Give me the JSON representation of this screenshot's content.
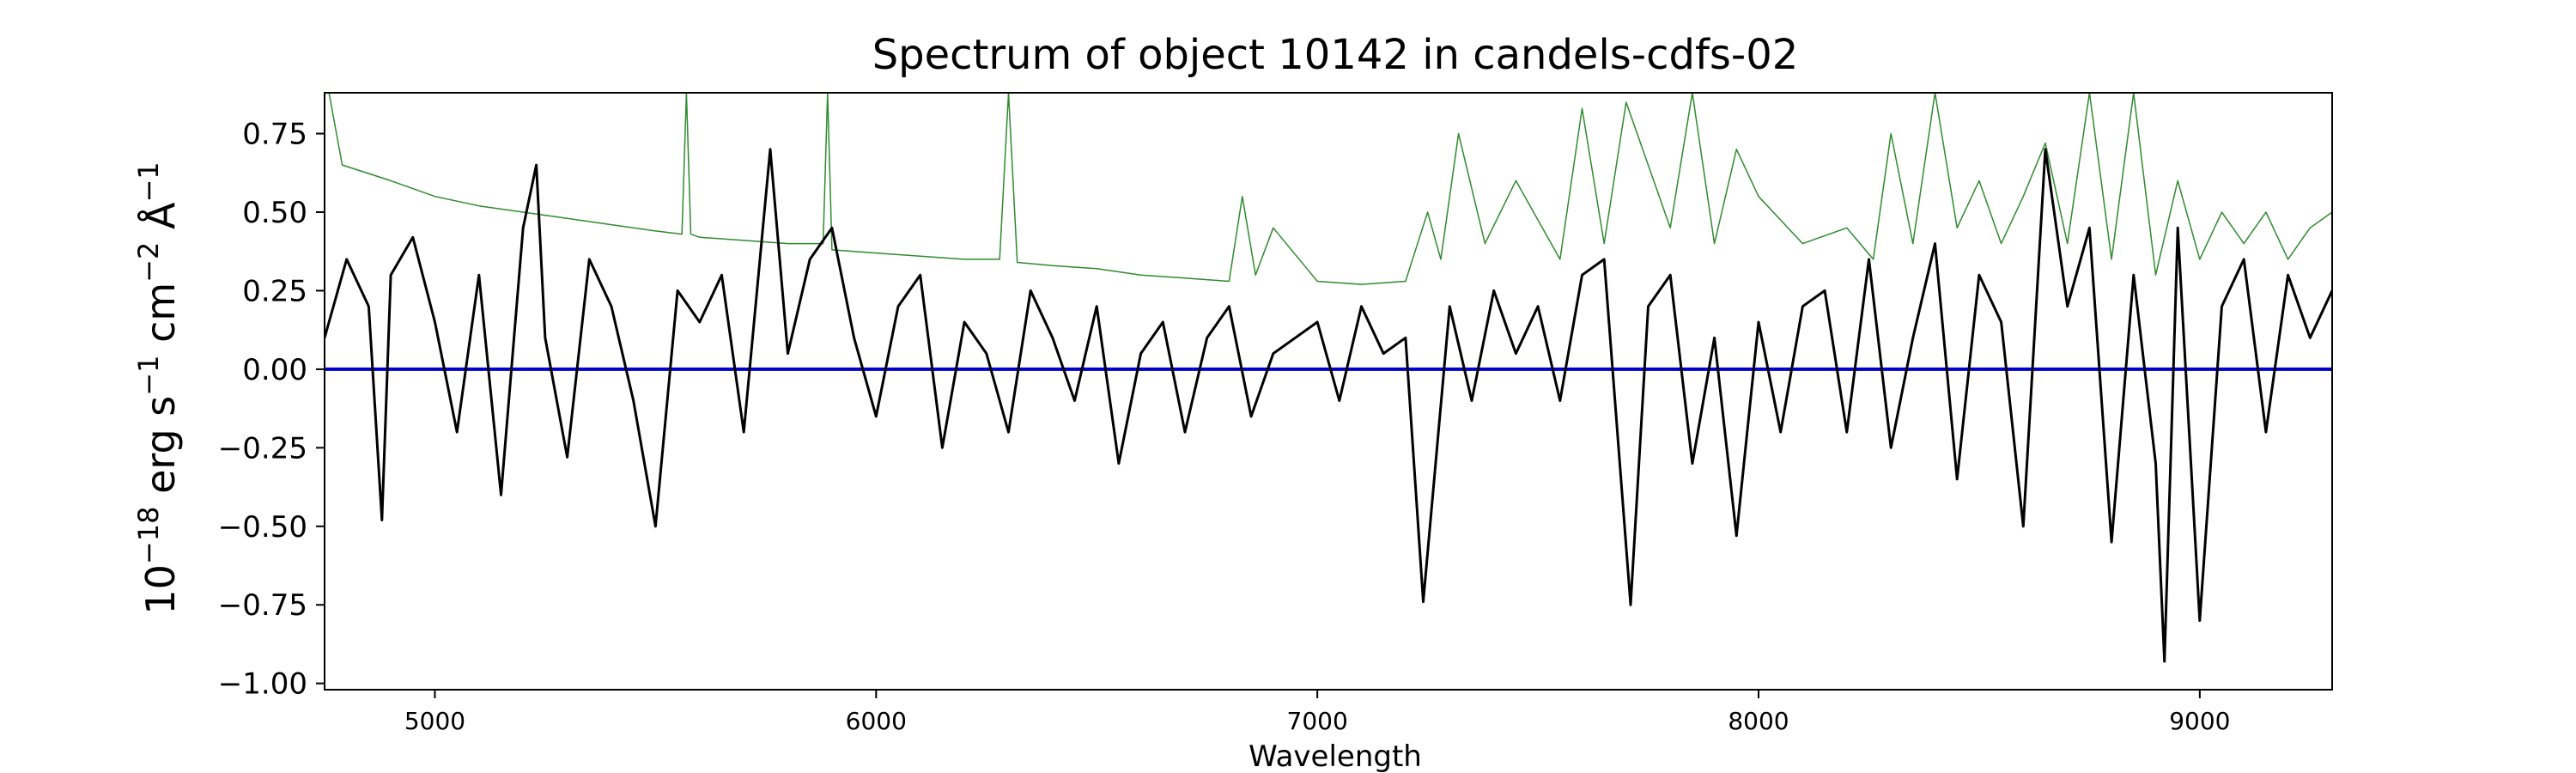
{
  "chart_data": {
    "type": "line",
    "title": "Spectrum of object 10142 in candels-cdfs-02",
    "xlabel": "Wavelength",
    "ylabel_parts": [
      "10",
      "−18",
      " erg s",
      "−1",
      " cm",
      "−2",
      " Å",
      "−1"
    ],
    "xlim": [
      4750,
      9300
    ],
    "ylim": [
      -1.02,
      0.88
    ],
    "xticks": [
      5000,
      6000,
      7000,
      8000,
      9000
    ],
    "xtick_labels": [
      "5000",
      "6000",
      "7000",
      "8000",
      "9000"
    ],
    "yticks": [
      0.75,
      0.5,
      0.25,
      0.0,
      -0.25,
      -0.5,
      -0.75,
      -1.0
    ],
    "ytick_labels": [
      "0.75",
      "0.50",
      "0.25",
      "0.00",
      "−0.25",
      "−0.50",
      "−0.75",
      "−1.00"
    ],
    "grid": false,
    "series": [
      {
        "role": "flux",
        "color": "#000000",
        "x": [
          4750,
          4800,
          4850,
          4880,
          4900,
          4950,
          5000,
          5050,
          5100,
          5150,
          5200,
          5230,
          5250,
          5300,
          5350,
          5400,
          5450,
          5500,
          5550,
          5600,
          5650,
          5700,
          5760,
          5800,
          5850,
          5900,
          5950,
          6000,
          6050,
          6100,
          6150,
          6200,
          6250,
          6300,
          6350,
          6400,
          6450,
          6500,
          6550,
          6600,
          6650,
          6700,
          6750,
          6800,
          6850,
          6900,
          6950,
          7000,
          7050,
          7100,
          7150,
          7200,
          7240,
          7300,
          7350,
          7400,
          7450,
          7500,
          7550,
          7600,
          7650,
          7710,
          7750,
          7800,
          7850,
          7900,
          7950,
          8000,
          8050,
          8100,
          8150,
          8200,
          8250,
          8300,
          8350,
          8400,
          8450,
          8500,
          8550,
          8600,
          8650,
          8700,
          8750,
          8800,
          8850,
          8900,
          8920,
          8950,
          9000,
          9050,
          9100,
          9150,
          9200,
          9250,
          9300
        ],
        "y": [
          0.1,
          0.35,
          0.2,
          -0.48,
          0.3,
          0.42,
          0.15,
          -0.2,
          0.3,
          -0.4,
          0.45,
          0.65,
          0.1,
          -0.28,
          0.35,
          0.2,
          -0.1,
          -0.5,
          0.25,
          0.15,
          0.3,
          -0.2,
          0.7,
          0.05,
          0.35,
          0.45,
          0.1,
          -0.15,
          0.2,
          0.3,
          -0.25,
          0.15,
          0.05,
          -0.2,
          0.25,
          0.1,
          -0.1,
          0.2,
          -0.3,
          0.05,
          0.15,
          -0.2,
          0.1,
          0.2,
          -0.15,
          0.05,
          0.1,
          0.15,
          -0.1,
          0.2,
          0.05,
          0.1,
          -0.74,
          0.2,
          -0.1,
          0.25,
          0.05,
          0.2,
          -0.1,
          0.3,
          0.35,
          -0.75,
          0.2,
          0.3,
          -0.3,
          0.1,
          -0.53,
          0.15,
          -0.2,
          0.2,
          0.25,
          -0.2,
          0.35,
          -0.25,
          0.1,
          0.4,
          -0.35,
          0.3,
          0.15,
          -0.5,
          0.7,
          0.2,
          0.45,
          -0.55,
          0.3,
          -0.3,
          -0.93,
          0.45,
          -0.8,
          0.2,
          0.35,
          -0.2,
          0.3,
          0.1,
          0.25
        ]
      },
      {
        "role": "error",
        "color": "#2e8b2e",
        "x": [
          4750,
          4760,
          4790,
          4900,
          5000,
          5100,
          5200,
          5300,
          5400,
          5500,
          5560,
          5570,
          5580,
          5600,
          5700,
          5800,
          5880,
          5890,
          5900,
          6000,
          6100,
          6200,
          6280,
          6300,
          6320,
          6400,
          6500,
          6600,
          6700,
          6800,
          6830,
          6860,
          6900,
          7000,
          7100,
          7200,
          7250,
          7280,
          7320,
          7380,
          7450,
          7550,
          7600,
          7650,
          7700,
          7800,
          7850,
          7900,
          7950,
          8000,
          8100,
          8200,
          8260,
          8300,
          8350,
          8400,
          8450,
          8500,
          8550,
          8600,
          8650,
          8700,
          8750,
          8800,
          8850,
          8900,
          8950,
          9000,
          9050,
          9100,
          9150,
          9200,
          9250,
          9300
        ],
        "y": [
          0.88,
          0.88,
          0.65,
          0.6,
          0.55,
          0.52,
          0.5,
          0.48,
          0.46,
          0.44,
          0.43,
          0.88,
          0.43,
          0.42,
          0.41,
          0.4,
          0.4,
          0.88,
          0.38,
          0.37,
          0.36,
          0.35,
          0.35,
          0.88,
          0.34,
          0.33,
          0.32,
          0.3,
          0.29,
          0.28,
          0.55,
          0.3,
          0.45,
          0.28,
          0.27,
          0.28,
          0.5,
          0.35,
          0.75,
          0.4,
          0.6,
          0.35,
          0.83,
          0.4,
          0.85,
          0.45,
          0.88,
          0.4,
          0.7,
          0.55,
          0.4,
          0.45,
          0.35,
          0.75,
          0.4,
          0.88,
          0.45,
          0.6,
          0.4,
          0.55,
          0.72,
          0.4,
          0.88,
          0.35,
          0.88,
          0.3,
          0.6,
          0.35,
          0.5,
          0.4,
          0.5,
          0.35,
          0.45,
          0.5
        ]
      },
      {
        "role": "zero",
        "color": "#0000cc",
        "x": [
          4750,
          9300
        ],
        "y": [
          0.0,
          0.0
        ]
      }
    ]
  }
}
